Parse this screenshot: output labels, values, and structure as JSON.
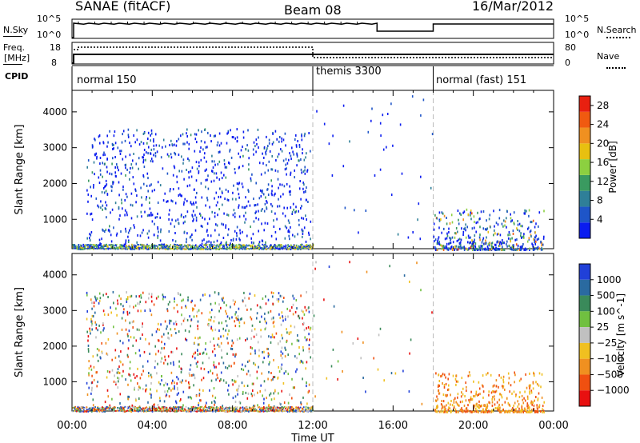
{
  "header": {
    "station": "SANAE (fitACF)",
    "beam": "Beam 08",
    "date": "16/Mar/2012"
  },
  "strip": {
    "nsky_label": "N.Sky",
    "nsky_ticks": [
      "10^5",
      "10^0"
    ],
    "nsearch_label": "N.Search",
    "nsearch_ticks": [
      "10^5",
      "10^0"
    ],
    "freq_label": "Freq.",
    "freq_unit": "[MHz]",
    "freq_ticks": [
      "18",
      "8"
    ],
    "nave_label": "Nave",
    "nave_ticks": [
      "80",
      "0"
    ],
    "cpid_label": "CPID",
    "cpid_segments": [
      {
        "name": "normal 150",
        "start_h": 0,
        "end_h": 12
      },
      {
        "name": "themis 3300",
        "start_h": 12,
        "end_h": 18
      },
      {
        "name": "normal (fast) 151",
        "start_h": 18,
        "end_h": 24
      }
    ]
  },
  "colors": {
    "power_scale": [
      "#0a1cf0",
      "#1e55c8",
      "#2f7f98",
      "#3a9a60",
      "#8cd040",
      "#e8c010",
      "#f09020",
      "#f05a10",
      "#e82010"
    ],
    "velocity_scale": [
      "#2040d8",
      "#2a6aa0",
      "#3a8a5a",
      "#70c040",
      "#c0c0c0",
      "#f0c020",
      "#f09020",
      "#f05010",
      "#e81010"
    ]
  },
  "chart_data": [
    {
      "type": "heatmap",
      "name": "power",
      "xlabel": "",
      "ylabel": "Slant Range [km]",
      "x_ticks": [
        "00:00",
        "04:00",
        "08:00",
        "12:00",
        "16:00",
        "20:00",
        "00:00"
      ],
      "xlim_hours": [
        0,
        24
      ],
      "y_ticks": [
        1000,
        2000,
        3000,
        4000
      ],
      "ylim": [
        180,
        4600
      ],
      "colorbar": {
        "label": "Power [dB]",
        "ticks": [
          4,
          8,
          12,
          16,
          20,
          24,
          28
        ],
        "range": [
          0,
          30
        ]
      },
      "scatter_regions": [
        {
          "x": [
            0.7,
            11.9
          ],
          "y": [
            300,
            3550
          ],
          "density": "high",
          "dominant_value": "4-8 dB"
        },
        {
          "x": [
            0,
            12
          ],
          "y": [
            180,
            320
          ],
          "density": "high",
          "dominant_value": "4-24 dB"
        },
        {
          "x": [
            12,
            18
          ],
          "y": [
            300,
            4500
          ],
          "density": "low",
          "dominant_value": "8-16 dB"
        },
        {
          "x": [
            18,
            23.5
          ],
          "y": [
            180,
            1300
          ],
          "density": "medium",
          "dominant_value": "4-28 dB"
        }
      ]
    },
    {
      "type": "heatmap",
      "name": "velocity",
      "xlabel": "Time UT",
      "ylabel": "Slant Range [km]",
      "x_ticks": [
        "00:00",
        "04:00",
        "08:00",
        "12:00",
        "16:00",
        "20:00",
        "00:00"
      ],
      "xlim_hours": [
        0,
        24
      ],
      "y_ticks": [
        1000,
        2000,
        3000,
        4000
      ],
      "ylim": [
        180,
        4600
      ],
      "colorbar": {
        "label": "Velocity [m s^-1]",
        "ticks": [
          "1000",
          "500",
          "100",
          "25",
          "−25",
          "−100",
          "−500",
          "−1000"
        ]
      },
      "scatter_regions": [
        {
          "x": [
            0.7,
            11.9
          ],
          "y": [
            300,
            3550
          ],
          "density": "high",
          "dominant_value": "mixed"
        },
        {
          "x": [
            0,
            12
          ],
          "y": [
            180,
            320
          ],
          "density": "high",
          "dominant_value": "25 to 100"
        },
        {
          "x": [
            12,
            18
          ],
          "y": [
            300,
            4500
          ],
          "density": "low",
          "dominant_value": "mixed"
        },
        {
          "x": [
            18,
            23.5
          ],
          "y": [
            180,
            1300
          ],
          "density": "medium",
          "dominant_value": "−100 to −500"
        }
      ]
    }
  ]
}
